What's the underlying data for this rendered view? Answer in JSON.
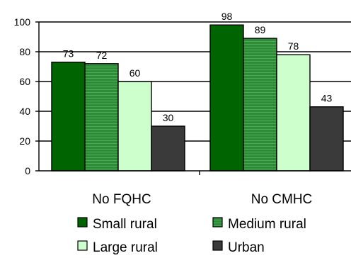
{
  "chart_data": {
    "type": "bar",
    "title": "",
    "xlabel": "",
    "ylabel": "",
    "categories": [
      "No FQHC",
      "No CMHC"
    ],
    "series": [
      {
        "name": "Small rural",
        "values": [
          73,
          98
        ],
        "color": "#006400"
      },
      {
        "name": "Medium rural",
        "values": [
          72,
          89
        ],
        "color": "#2e8b3a"
      },
      {
        "name": "Large rural",
        "values": [
          60,
          78
        ],
        "color": "#ccffcc"
      },
      {
        "name": "Urban",
        "values": [
          30,
          43
        ],
        "color": "#3a3a3a"
      }
    ],
    "ylim": [
      0,
      100
    ],
    "yticks": [
      "0",
      "20",
      "40",
      "60",
      "80",
      "100"
    ],
    "data_labels": [
      [
        "73",
        "72",
        "60",
        "30"
      ],
      [
        "98",
        "89",
        "78",
        "43"
      ]
    ],
    "grid": true,
    "legend_position": "bottom"
  }
}
